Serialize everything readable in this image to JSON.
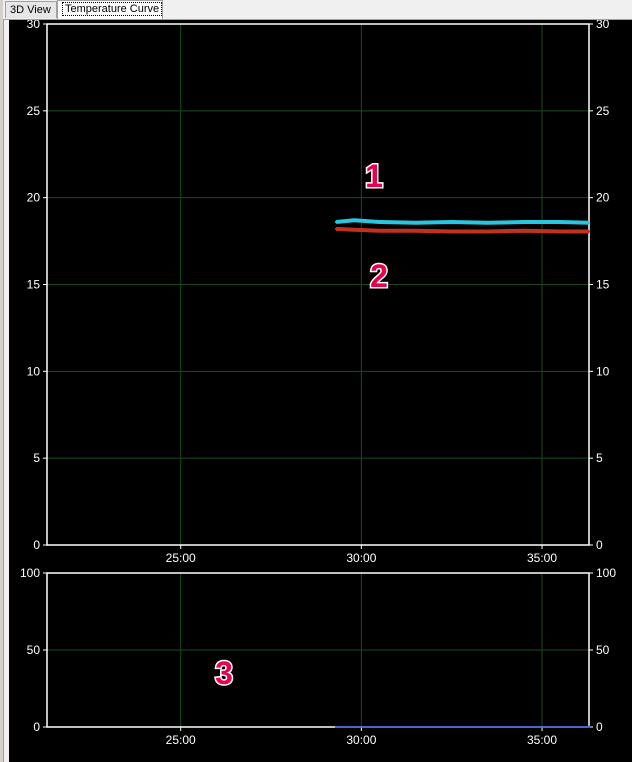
{
  "tabs": [
    {
      "label": "3D View",
      "active": false
    },
    {
      "label": "Temperature Curve",
      "active": true
    }
  ],
  "annotations": [
    "1",
    "2",
    "3"
  ],
  "chart_data": [
    {
      "type": "line",
      "title": "",
      "xlabel": "",
      "ylabel": "",
      "x_ticks": [
        "25:00",
        "30:00",
        "35:00"
      ],
      "y_ticks": [
        "0",
        "5",
        "10",
        "15",
        "20",
        "25",
        "30"
      ],
      "xlim_minutes": [
        21.3,
        36.3
      ],
      "ylim": [
        0,
        30
      ],
      "grid": true,
      "series": [
        {
          "color": "#29c6e0",
          "x_minutes": [
            29.3,
            29.8,
            30.5,
            31.5,
            32.5,
            33.5,
            34.5,
            35.5,
            36.3
          ],
          "values": [
            18.6,
            18.7,
            18.6,
            18.55,
            18.6,
            18.55,
            18.6,
            18.6,
            18.55
          ]
        },
        {
          "color": "#c0321e",
          "x_minutes": [
            29.3,
            29.8,
            30.5,
            31.5,
            32.5,
            33.5,
            34.5,
            35.5,
            36.3
          ],
          "values": [
            18.2,
            18.15,
            18.1,
            18.1,
            18.05,
            18.05,
            18.1,
            18.05,
            18.05
          ]
        }
      ]
    },
    {
      "type": "line",
      "title": "",
      "xlabel": "",
      "ylabel": "",
      "x_ticks": [
        "25:00",
        "30:00",
        "35:00"
      ],
      "y_ticks": [
        "0",
        "50",
        "100"
      ],
      "xlim_minutes": [
        21.3,
        36.3
      ],
      "ylim": [
        0,
        100
      ],
      "grid": true,
      "series": [
        {
          "color": "#3a5fe0",
          "x_minutes": [
            29.3,
            36.3
          ],
          "values": [
            0,
            0
          ]
        }
      ]
    }
  ]
}
